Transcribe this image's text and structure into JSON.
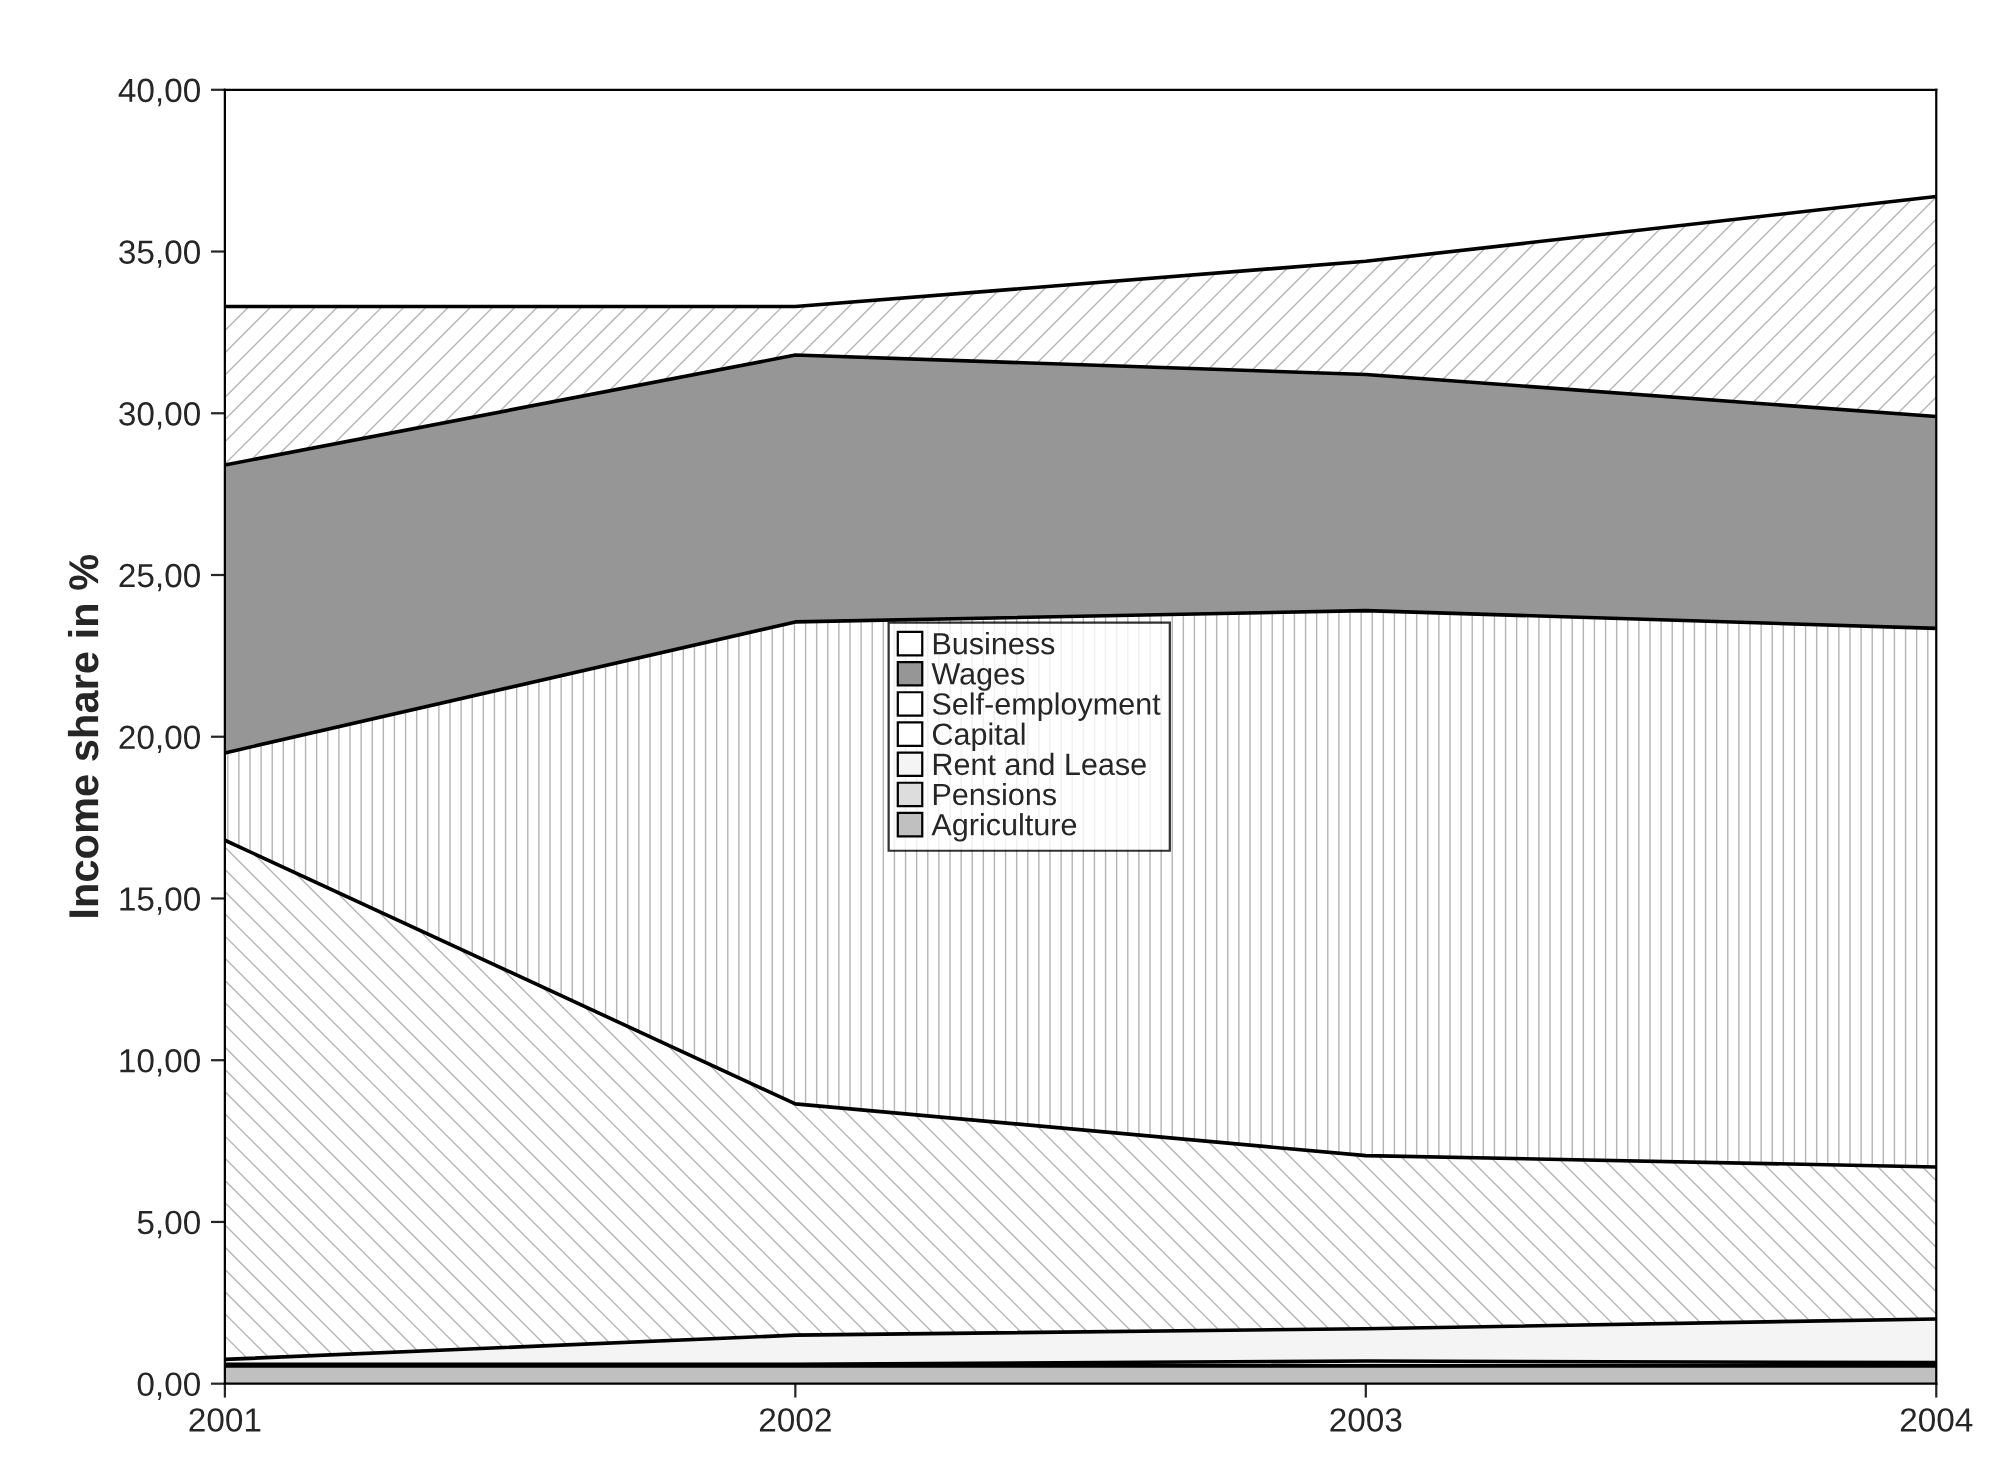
{
  "chart_data": {
    "type": "area",
    "stacked": true,
    "ylabel": "Income share in %",
    "categories": [
      "2001",
      "2002",
      "2003",
      "2004"
    ],
    "series": [
      {
        "name": "Agriculture",
        "color": "#c0c0c0",
        "values": [
          0.55,
          0.55,
          0.55,
          0.55
        ]
      },
      {
        "name": "Pensions",
        "color": "#dddddd",
        "values": [
          0.05,
          0.05,
          0.15,
          0.1
        ]
      },
      {
        "name": "Rent and Lease",
        "color": "#f4f4f4",
        "values": [
          0.15,
          0.9,
          1.0,
          1.35
        ]
      },
      {
        "name": "Capital",
        "color": "#ffffff",
        "values": [
          16.05,
          7.15,
          5.35,
          4.7
        ]
      },
      {
        "name": "Self-employment",
        "color": "#ffffff",
        "values": [
          2.7,
          14.9,
          16.85,
          16.65
        ]
      },
      {
        "name": "Wages",
        "color": "#969696",
        "values": [
          8.9,
          8.25,
          7.3,
          6.55
        ]
      },
      {
        "name": "Business",
        "color": "#ffffff",
        "values": [
          4.9,
          1.5,
          3.5,
          6.8
        ]
      }
    ],
    "ylim": [
      0,
      40
    ],
    "yticks": [
      {
        "value": 0,
        "label": "0,00"
      },
      {
        "value": 5,
        "label": "5,00"
      },
      {
        "value": 10,
        "label": "10,00"
      },
      {
        "value": 15,
        "label": "15,00"
      },
      {
        "value": 20,
        "label": "20,00"
      },
      {
        "value": 25,
        "label": "25,00"
      },
      {
        "value": 30,
        "label": "30,00"
      },
      {
        "value": 35,
        "label": "35,00"
      },
      {
        "value": 40,
        "label": "40,00"
      }
    ],
    "grid": false,
    "legend": "center"
  }
}
